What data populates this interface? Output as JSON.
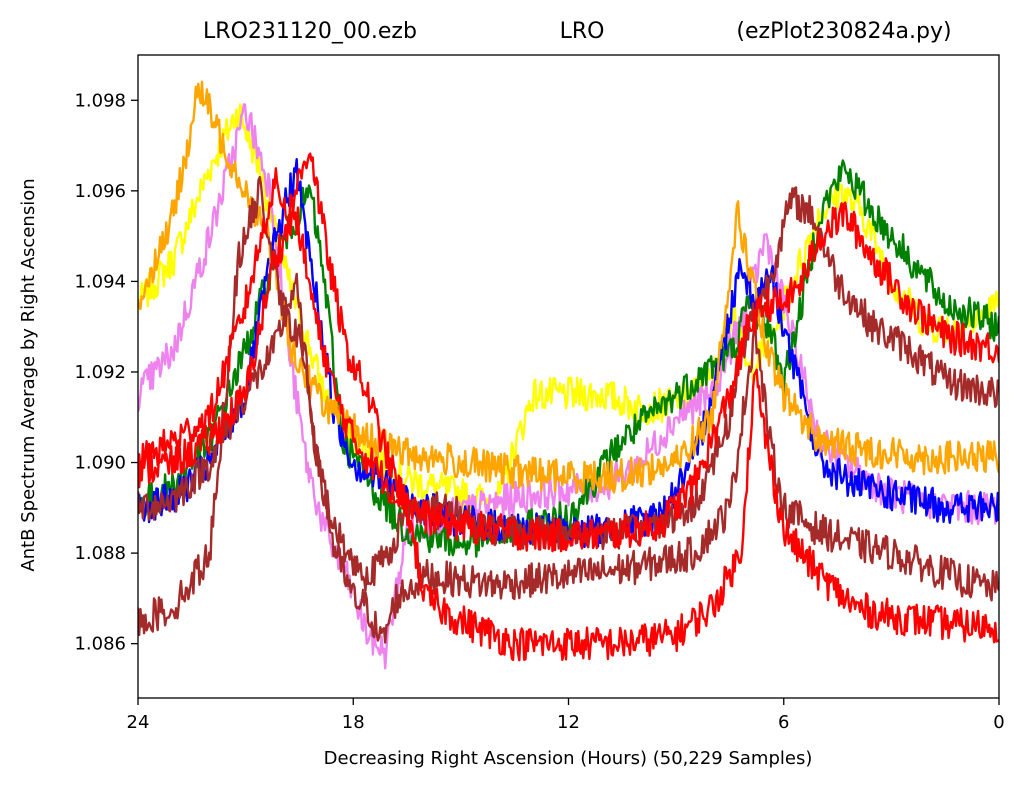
{
  "title_parts": [
    "LRO231120_00.ezb",
    "LRO",
    "(ezPlot230824a.py)"
  ],
  "chart_data": {
    "type": "line",
    "xlabel": "Decreasing Right Ascension (Hours) (50,229 Samples)",
    "ylabel": "AntB Spectrum Average by Right Ascension",
    "xlim": [
      24,
      0
    ],
    "ylim": [
      1.0848,
      1.099
    ],
    "x_ticks": [
      24,
      18,
      12,
      6,
      0
    ],
    "x_tick_labels": [
      "24",
      "18",
      "12",
      "6",
      "0"
    ],
    "y_ticks": [
      1.086,
      1.088,
      1.09,
      1.092,
      1.094,
      1.096,
      1.098
    ],
    "y_tick_labels": [
      "1.086",
      "1.088",
      "1.090",
      "1.092",
      "1.094",
      "1.096",
      "1.098"
    ],
    "grid": false,
    "legend": "none",
    "series": [
      {
        "color": "#ffff00",
        "points": [
          [
            24,
            1.0935
          ],
          [
            23,
            1.0945
          ],
          [
            22,
            1.0965
          ],
          [
            21.2,
            1.0978
          ],
          [
            20.6,
            1.0965
          ],
          [
            20,
            1.0945
          ],
          [
            19.4,
            1.093
          ],
          [
            18.8,
            1.0915
          ],
          [
            18,
            1.0905
          ],
          [
            17,
            1.0898
          ],
          [
            16,
            1.0895
          ],
          [
            15,
            1.0893
          ],
          [
            14,
            1.0891
          ],
          [
            13,
            1.0915
          ],
          [
            12,
            1.0915
          ],
          [
            11,
            1.0915
          ],
          [
            10,
            1.0912
          ],
          [
            9,
            1.0913
          ],
          [
            8,
            1.0918
          ],
          [
            7.4,
            1.0935
          ],
          [
            7,
            1.092
          ],
          [
            6.5,
            1.0925
          ],
          [
            6,
            1.0935
          ],
          [
            5.5,
            1.0945
          ],
          [
            5,
            1.0955
          ],
          [
            4.4,
            1.096
          ],
          [
            3.8,
            1.0955
          ],
          [
            3,
            1.094
          ],
          [
            2,
            1.093
          ],
          [
            1,
            1.093
          ],
          [
            0,
            1.0935
          ]
        ]
      },
      {
        "color": "#ee82ee",
        "points": [
          [
            24,
            1.0915
          ],
          [
            23,
            1.0925
          ],
          [
            22,
            1.095
          ],
          [
            21,
            1.0978
          ],
          [
            20.3,
            1.096
          ],
          [
            19.8,
            1.0925
          ],
          [
            19.3,
            1.09
          ],
          [
            18.8,
            1.0885
          ],
          [
            18.2,
            1.0875
          ],
          [
            17.6,
            1.0862
          ],
          [
            17.1,
            1.0858
          ],
          [
            16.5,
            1.0885
          ],
          [
            15,
            1.0889
          ],
          [
            13,
            1.0893
          ],
          [
            11,
            1.0895
          ],
          [
            10,
            1.09
          ],
          [
            9,
            1.091
          ],
          [
            8,
            1.0915
          ],
          [
            7,
            1.0935
          ],
          [
            6.5,
            1.095
          ],
          [
            6,
            1.0935
          ],
          [
            5.5,
            1.092
          ],
          [
            5,
            1.0905
          ],
          [
            4,
            1.0898
          ],
          [
            3,
            1.0893
          ],
          [
            2,
            1.0891
          ],
          [
            1,
            1.089
          ],
          [
            0,
            1.089
          ]
        ]
      },
      {
        "color": "#008000",
        "points": [
          [
            24,
            1.089
          ],
          [
            23,
            1.0895
          ],
          [
            22,
            1.0905
          ],
          [
            21,
            1.0925
          ],
          [
            20.2,
            1.0945
          ],
          [
            19.2,
            1.096
          ],
          [
            18.8,
            1.094
          ],
          [
            18.3,
            1.0905
          ],
          [
            17.5,
            1.0895
          ],
          [
            16.5,
            1.0885
          ],
          [
            15,
            1.0882
          ],
          [
            14,
            1.0884
          ],
          [
            13,
            1.0886
          ],
          [
            12,
            1.0888
          ],
          [
            10.5,
            1.0905
          ],
          [
            9,
            1.0915
          ],
          [
            7.4,
            1.0925
          ],
          [
            7,
            1.0935
          ],
          [
            6.4,
            1.093
          ],
          [
            6,
            1.0918
          ],
          [
            5.5,
            1.0935
          ],
          [
            5,
            1.0955
          ],
          [
            4.3,
            1.0965
          ],
          [
            3.5,
            1.0955
          ],
          [
            2.5,
            1.0945
          ],
          [
            1.5,
            1.0935
          ],
          [
            0,
            1.093
          ]
        ]
      },
      {
        "color": "#0000ff",
        "points": [
          [
            24,
            1.089
          ],
          [
            23,
            1.0892
          ],
          [
            22,
            1.09
          ],
          [
            21,
            1.0915
          ],
          [
            20.3,
            1.0945
          ],
          [
            19.6,
            1.0965
          ],
          [
            19,
            1.0935
          ],
          [
            18.5,
            1.091
          ],
          [
            18,
            1.09
          ],
          [
            17,
            1.0895
          ],
          [
            16,
            1.089
          ],
          [
            15,
            1.0887
          ],
          [
            13,
            1.0885
          ],
          [
            11,
            1.0885
          ],
          [
            9.5,
            1.0888
          ],
          [
            8.5,
            1.09
          ],
          [
            7.7,
            1.0925
          ],
          [
            7.2,
            1.0945
          ],
          [
            6.8,
            1.0935
          ],
          [
            6.4,
            1.0943
          ],
          [
            6,
            1.093
          ],
          [
            5.5,
            1.0915
          ],
          [
            5,
            1.09
          ],
          [
            4,
            1.0895
          ],
          [
            3,
            1.0893
          ],
          [
            2,
            1.0891
          ],
          [
            1,
            1.089
          ],
          [
            0,
            1.089
          ]
        ]
      },
      {
        "color": "#ffa500",
        "points": [
          [
            24,
            1.0935
          ],
          [
            23,
            1.0955
          ],
          [
            22.3,
            1.0983
          ],
          [
            21.6,
            1.097
          ],
          [
            21,
            1.096
          ],
          [
            20.4,
            1.095
          ],
          [
            19.7,
            1.0925
          ],
          [
            19,
            1.0915
          ],
          [
            18.2,
            1.0908
          ],
          [
            17.5,
            1.0905
          ],
          [
            16.5,
            1.0902
          ],
          [
            15,
            1.09
          ],
          [
            13.5,
            1.0898
          ],
          [
            12,
            1.0897
          ],
          [
            10.5,
            1.0897
          ],
          [
            9,
            1.09
          ],
          [
            8,
            1.091
          ],
          [
            7.3,
            1.0955
          ],
          [
            7,
            1.0945
          ],
          [
            6.5,
            1.0925
          ],
          [
            6,
            1.0915
          ],
          [
            5,
            1.0905
          ],
          [
            4,
            1.0903
          ],
          [
            3,
            1.0902
          ],
          [
            2,
            1.0901
          ],
          [
            1,
            1.0901
          ],
          [
            0,
            1.0901
          ]
        ]
      },
      {
        "color": "#a52a2a",
        "points": [
          [
            24,
            1.0865
          ],
          [
            23,
            1.0868
          ],
          [
            22,
            1.088
          ],
          [
            21.2,
            1.0945
          ],
          [
            20.6,
            1.096
          ],
          [
            20,
            1.0935
          ],
          [
            19.4,
            1.0925
          ],
          [
            19,
            1.09
          ],
          [
            18.5,
            1.0885
          ],
          [
            18,
            1.0878
          ],
          [
            17.6,
            1.0875
          ],
          [
            17,
            1.088
          ],
          [
            16.5,
            1.089
          ],
          [
            15.5,
            1.089
          ],
          [
            14,
            1.0885
          ],
          [
            12,
            1.0884
          ],
          [
            10,
            1.0885
          ],
          [
            8.5,
            1.089
          ],
          [
            7.5,
            1.091
          ],
          [
            7,
            1.093
          ],
          [
            6.4,
            1.094
          ],
          [
            5.8,
            1.0958
          ],
          [
            5.2,
            1.0955
          ],
          [
            4.5,
            1.094
          ],
          [
            3.5,
            1.093
          ],
          [
            2.5,
            1.0925
          ],
          [
            1.5,
            1.0918
          ],
          [
            0,
            1.0915
          ]
        ]
      },
      {
        "color": "#a52a2a",
        "points": [
          [
            24,
            1.089
          ],
          [
            23,
            1.0892
          ],
          [
            22,
            1.09
          ],
          [
            21,
            1.0915
          ],
          [
            20.2,
            1.0925
          ],
          [
            19.6,
            1.094
          ],
          [
            19,
            1.09
          ],
          [
            18.5,
            1.088
          ],
          [
            18,
            1.087
          ],
          [
            17.6,
            1.0868
          ],
          [
            17.2,
            1.086
          ],
          [
            16.8,
            1.087
          ],
          [
            16,
            1.0875
          ],
          [
            14,
            1.0873
          ],
          [
            12,
            1.0875
          ],
          [
            10,
            1.0877
          ],
          [
            8.5,
            1.088
          ],
          [
            7.5,
            1.089
          ],
          [
            6.8,
            1.093
          ],
          [
            6.4,
            1.0905
          ],
          [
            6,
            1.089
          ],
          [
            5,
            1.0885
          ],
          [
            4,
            1.0882
          ],
          [
            3,
            1.088
          ],
          [
            2,
            1.0877
          ],
          [
            1,
            1.0874
          ],
          [
            0,
            1.0872
          ]
        ]
      },
      {
        "color": "#ff0000",
        "points": [
          [
            24,
            1.09
          ],
          [
            23,
            1.0905
          ],
          [
            22,
            1.091
          ],
          [
            21,
            1.0935
          ],
          [
            20.2,
            1.0962
          ],
          [
            19.8,
            1.0955
          ],
          [
            19.2,
            1.097
          ],
          [
            18.7,
            1.0945
          ],
          [
            18.2,
            1.0925
          ],
          [
            17.6,
            1.0915
          ],
          [
            17,
            1.09
          ],
          [
            16.5,
            1.089
          ],
          [
            16,
            1.087
          ],
          [
            15,
            1.0865
          ],
          [
            13.5,
            1.086
          ],
          [
            12,
            1.086
          ],
          [
            10.5,
            1.086
          ],
          [
            9,
            1.0862
          ],
          [
            8,
            1.0868
          ],
          [
            7.2,
            1.088
          ],
          [
            6.8,
            1.092
          ],
          [
            6.5,
            1.0905
          ],
          [
            6,
            1.0885
          ],
          [
            5,
            1.0875
          ],
          [
            4,
            1.0868
          ],
          [
            3,
            1.0866
          ],
          [
            2,
            1.0865
          ],
          [
            1,
            1.0864
          ],
          [
            0,
            1.0864
          ]
        ]
      },
      {
        "color": "#ff0000",
        "points": [
          [
            24,
            1.0898
          ],
          [
            23,
            1.09
          ],
          [
            22,
            1.0905
          ],
          [
            21,
            1.0915
          ],
          [
            20.2,
            1.0945
          ],
          [
            19.6,
            1.0955
          ],
          [
            19,
            1.093
          ],
          [
            18.5,
            1.0915
          ],
          [
            18,
            1.0905
          ],
          [
            17,
            1.0895
          ],
          [
            16,
            1.0888
          ],
          [
            15,
            1.0886
          ],
          [
            13,
            1.0884
          ],
          [
            11,
            1.0884
          ],
          [
            9.5,
            1.0886
          ],
          [
            8.5,
            1.0895
          ],
          [
            7.5,
            1.0915
          ],
          [
            7,
            1.093
          ],
          [
            6.5,
            1.0935
          ],
          [
            6,
            1.0935
          ],
          [
            5.5,
            1.094
          ],
          [
            5,
            1.095
          ],
          [
            4.3,
            1.0955
          ],
          [
            3.5,
            1.0945
          ],
          [
            2.5,
            1.0935
          ],
          [
            1.5,
            1.0928
          ],
          [
            0,
            1.0925
          ]
        ]
      }
    ]
  }
}
